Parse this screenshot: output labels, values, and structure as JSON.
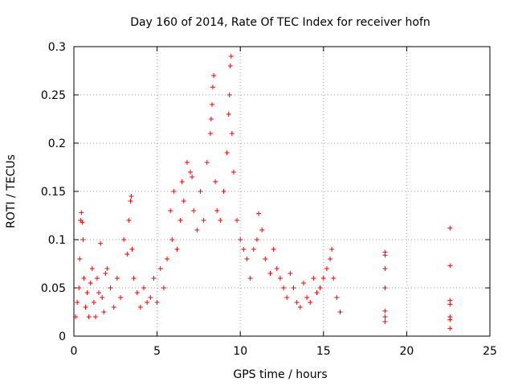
{
  "chart_data": {
    "type": "scatter",
    "title": "Day 160 of 2014, Rate Of TEC Index for receiver hofn",
    "xlabel": "GPS time / hours",
    "ylabel": "ROTI / TECUs",
    "xlim": [
      0,
      25
    ],
    "ylim": [
      0,
      0.3
    ],
    "x_ticks": [
      0,
      5,
      10,
      15,
      20,
      25
    ],
    "y_ticks": [
      0,
      0.05,
      0.1,
      0.15,
      0.2,
      0.25,
      0.3
    ],
    "x_tick_labels": [
      "0",
      "5",
      "10",
      "15",
      "20",
      "25"
    ],
    "y_tick_labels": [
      "0",
      "0.05",
      "0.1",
      "0.15",
      "0.2",
      "0.25",
      "0.3"
    ],
    "grid": true,
    "marker": "plus",
    "marker_color": "#ff0000",
    "points": [
      [
        0.1,
        0.02
      ],
      [
        0.2,
        0.035
      ],
      [
        0.3,
        0.05
      ],
      [
        0.35,
        0.08
      ],
      [
        0.4,
        0.12
      ],
      [
        0.45,
        0.128
      ],
      [
        0.5,
        0.118
      ],
      [
        0.55,
        0.1
      ],
      [
        0.6,
        0.06
      ],
      [
        0.7,
        0.03
      ],
      [
        0.8,
        0.045
      ],
      [
        0.9,
        0.02
      ],
      [
        1.0,
        0.055
      ],
      [
        1.1,
        0.07
      ],
      [
        1.2,
        0.035
      ],
      [
        1.3,
        0.02
      ],
      [
        1.4,
        0.06
      ],
      [
        1.5,
        0.045
      ],
      [
        1.6,
        0.096
      ],
      [
        1.7,
        0.04
      ],
      [
        1.8,
        0.025
      ],
      [
        1.9,
        0.065
      ],
      [
        2.0,
        0.07
      ],
      [
        2.2,
        0.05
      ],
      [
        2.4,
        0.03
      ],
      [
        2.6,
        0.06
      ],
      [
        2.8,
        0.04
      ],
      [
        3.0,
        0.1
      ],
      [
        3.2,
        0.085
      ],
      [
        3.3,
        0.12
      ],
      [
        3.4,
        0.14
      ],
      [
        3.45,
        0.145
      ],
      [
        3.5,
        0.09
      ],
      [
        3.6,
        0.06
      ],
      [
        3.8,
        0.045
      ],
      [
        4.0,
        0.03
      ],
      [
        4.2,
        0.05
      ],
      [
        4.4,
        0.035
      ],
      [
        4.6,
        0.04
      ],
      [
        4.8,
        0.06
      ],
      [
        5.0,
        0.035
      ],
      [
        5.2,
        0.07
      ],
      [
        5.4,
        0.05
      ],
      [
        5.6,
        0.08
      ],
      [
        5.8,
        0.13
      ],
      [
        5.9,
        0.1
      ],
      [
        6.0,
        0.15
      ],
      [
        6.2,
        0.09
      ],
      [
        6.4,
        0.12
      ],
      [
        6.5,
        0.16
      ],
      [
        6.6,
        0.14
      ],
      [
        6.8,
        0.18
      ],
      [
        7.0,
        0.17
      ],
      [
        7.1,
        0.165
      ],
      [
        7.2,
        0.13
      ],
      [
        7.4,
        0.11
      ],
      [
        7.6,
        0.15
      ],
      [
        7.8,
        0.12
      ],
      [
        8.0,
        0.18
      ],
      [
        8.2,
        0.21
      ],
      [
        8.25,
        0.225
      ],
      [
        8.3,
        0.24
      ],
      [
        8.35,
        0.258
      ],
      [
        8.4,
        0.27
      ],
      [
        8.5,
        0.16
      ],
      [
        8.6,
        0.13
      ],
      [
        8.8,
        0.12
      ],
      [
        9.0,
        0.15
      ],
      [
        9.2,
        0.19
      ],
      [
        9.3,
        0.23
      ],
      [
        9.35,
        0.25
      ],
      [
        9.4,
        0.28
      ],
      [
        9.45,
        0.29
      ],
      [
        9.5,
        0.21
      ],
      [
        9.6,
        0.17
      ],
      [
        9.8,
        0.12
      ],
      [
        10.0,
        0.1
      ],
      [
        10.2,
        0.09
      ],
      [
        10.4,
        0.08
      ],
      [
        10.6,
        0.06
      ],
      [
        10.8,
        0.09
      ],
      [
        11.0,
        0.1
      ],
      [
        11.1,
        0.127
      ],
      [
        11.3,
        0.11
      ],
      [
        11.5,
        0.08
      ],
      [
        11.8,
        0.065
      ],
      [
        12.0,
        0.09
      ],
      [
        12.2,
        0.07
      ],
      [
        12.4,
        0.06
      ],
      [
        12.6,
        0.05
      ],
      [
        12.8,
        0.04
      ],
      [
        13.0,
        0.065
      ],
      [
        13.2,
        0.05
      ],
      [
        13.4,
        0.035
      ],
      [
        13.6,
        0.03
      ],
      [
        13.8,
        0.055
      ],
      [
        14.0,
        0.04
      ],
      [
        14.2,
        0.035
      ],
      [
        14.4,
        0.06
      ],
      [
        14.6,
        0.045
      ],
      [
        14.8,
        0.05
      ],
      [
        15.0,
        0.06
      ],
      [
        15.2,
        0.07
      ],
      [
        15.4,
        0.08
      ],
      [
        15.5,
        0.09
      ],
      [
        15.6,
        0.06
      ],
      [
        15.8,
        0.04
      ],
      [
        16.0,
        0.025
      ],
      [
        18.7,
        0.087
      ],
      [
        18.7,
        0.084
      ],
      [
        18.7,
        0.07
      ],
      [
        18.7,
        0.05
      ],
      [
        18.7,
        0.026
      ],
      [
        18.7,
        0.02
      ],
      [
        18.7,
        0.015
      ],
      [
        22.6,
        0.112
      ],
      [
        22.6,
        0.073
      ],
      [
        22.6,
        0.037
      ],
      [
        22.6,
        0.033
      ],
      [
        22.6,
        0.02
      ],
      [
        22.6,
        0.017
      ],
      [
        22.6,
        0.008
      ]
    ]
  }
}
